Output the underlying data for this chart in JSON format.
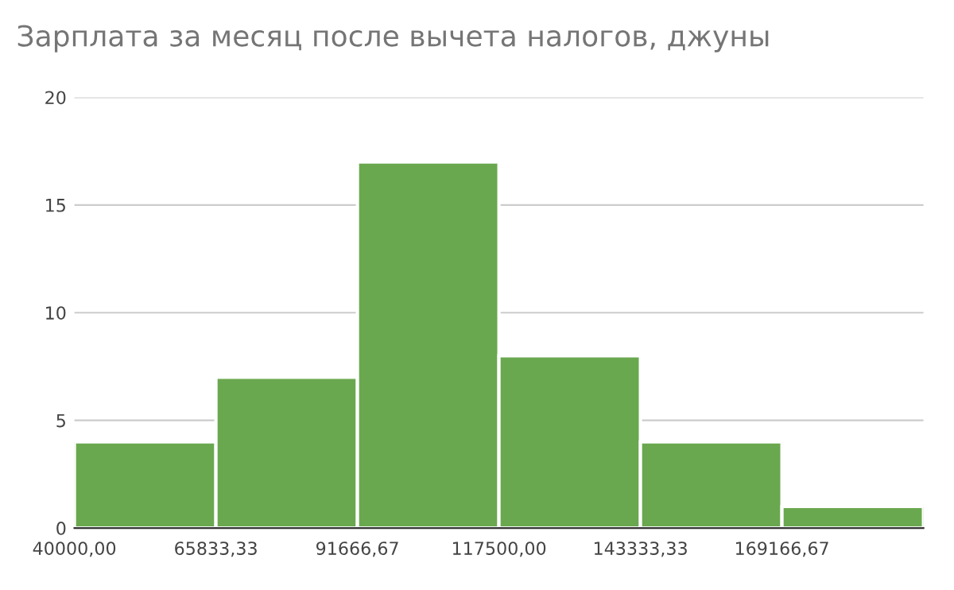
{
  "chart_data": {
    "type": "histogram",
    "title": "Зарплата за месяц после вычета налогов, джуны",
    "bins": [
      40000,
      65833.33,
      91666.67,
      117500,
      143333.33,
      169166.67,
      195000
    ],
    "values": [
      4,
      7,
      17,
      8,
      4,
      1
    ],
    "color": "#6aa84f",
    "xlim": [
      40000,
      195000
    ],
    "xticks": [
      {
        "value": 40000,
        "label": "40000,00"
      },
      {
        "value": 65833.33,
        "label": "65833,33"
      },
      {
        "value": 91666.67,
        "label": "91666,67"
      },
      {
        "value": 117500,
        "label": "117500,00"
      },
      {
        "value": 143333.33,
        "label": "143333,33"
      },
      {
        "value": 169166.67,
        "label": "169166,67"
      }
    ],
    "ylim": [
      0,
      20
    ],
    "yticks": [
      0,
      5,
      10,
      15,
      20
    ],
    "grid": "y"
  }
}
